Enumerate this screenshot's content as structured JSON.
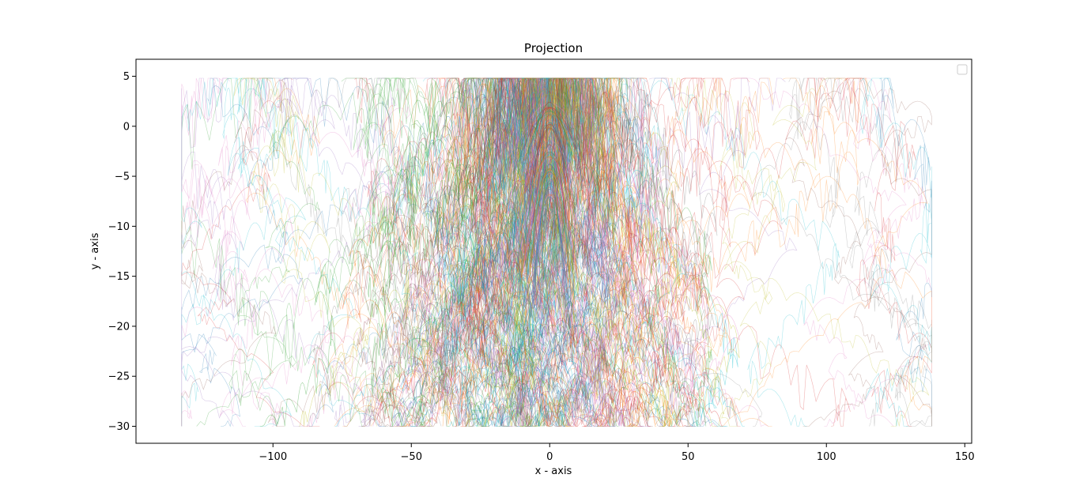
{
  "chart_data": {
    "type": "line",
    "title": "Projection",
    "xlabel": "x - axis",
    "ylabel": "y - axis",
    "xlim": [
      -149.5,
      152.5
    ],
    "ylim": [
      -31.7,
      6.7
    ],
    "xticks": [
      -100,
      -50,
      0,
      50,
      100,
      150
    ],
    "yticks": [
      5,
      0,
      -5,
      -10,
      -15,
      -20,
      -25,
      -30
    ],
    "xtick_labels": [
      "−100",
      "−50",
      "0",
      "50",
      "100",
      "150"
    ],
    "ytick_labels": [
      "5",
      "0",
      "−5",
      "−10",
      "−15",
      "−20",
      "−25",
      "−30"
    ],
    "grid": false,
    "legend": {
      "placement": "top-right",
      "entries": []
    },
    "trajectory_count": 300,
    "trajectory_peak_y": 4.8,
    "trajectory_floor_y": -30,
    "trajectory_x_extent": [
      -133,
      138
    ],
    "palette": [
      "#1f77b4",
      "#ff7f0e",
      "#2ca02c",
      "#d62728",
      "#9467bd",
      "#8c564b",
      "#e377c2",
      "#7f7f7f",
      "#bcbd22",
      "#17becf"
    ],
    "dense_core_x_range": [
      -45,
      45
    ]
  }
}
